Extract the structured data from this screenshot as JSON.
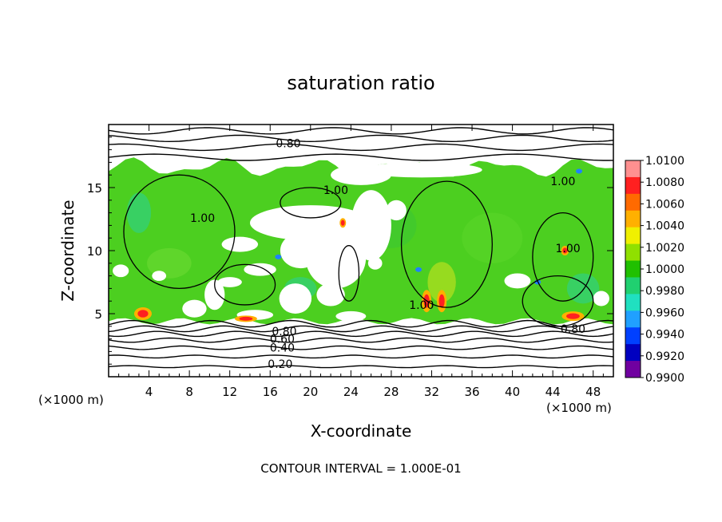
{
  "chart_data": {
    "type": "heatmap",
    "title": "saturation ratio",
    "xlabel": "X-coordinate",
    "ylabel": "Z-coordinate",
    "x_unit": "(×1000 m)",
    "y_unit": "(×1000 m)",
    "footer": "CONTOUR INTERVAL = 1.000E-01",
    "xlim": [
      0,
      50
    ],
    "ylim": [
      0,
      20
    ],
    "x_ticks": [
      4,
      8,
      12,
      16,
      20,
      24,
      28,
      32,
      36,
      40,
      44,
      48
    ],
    "y_ticks": [
      5,
      10,
      15
    ],
    "colorbar": {
      "ticks": [
        "1.0100",
        "1.0080",
        "1.0060",
        "1.0040",
        "1.0020",
        "1.0000",
        "0.9980",
        "0.9960",
        "0.9940",
        "0.9920",
        "0.9900"
      ],
      "colors": [
        "#ff9090",
        "#ff2020",
        "#ff6a00",
        "#ffb000",
        "#f0f000",
        "#90e000",
        "#20c000",
        "#20d070",
        "#20e0c0",
        "#20a0ff",
        "#0040ff",
        "#0000c0",
        "#7000a0"
      ]
    },
    "contour_labels": [
      {
        "text": "0.20",
        "x": 17,
        "z": 1.0
      },
      {
        "text": "0.40",
        "x": 17.2,
        "z": 2.3
      },
      {
        "text": "0.60",
        "x": 17.2,
        "z": 3.0
      },
      {
        "text": "0.80",
        "x": 17.4,
        "z": 3.6
      },
      {
        "text": "0.80",
        "x": 46,
        "z": 3.8
      },
      {
        "text": "0.80",
        "x": 17.8,
        "z": 18.5
      },
      {
        "text": "1.00",
        "x": 31,
        "z": 5.7
      },
      {
        "text": "1.00",
        "x": 45,
        "z": 15.5
      },
      {
        "text": "1.00",
        "x": 9.3,
        "z": 12.6
      },
      {
        "text": "1.00",
        "x": 22.5,
        "z": 14.8
      },
      {
        "text": "1.00",
        "x": 45.5,
        "z": 10.2
      }
    ],
    "upper_isolines_z": [
      17.4,
      18.2,
      18.9,
      19.5
    ],
    "lower_isolines_z": [
      0.8,
      1.6,
      2.3,
      2.9,
      3.4,
      3.8,
      4.2
    ],
    "field": {
      "cloud_top_z": 16.6,
      "cloud_base_z": 4.4,
      "base_value": 1.0,
      "notes": "Green field (~1.0000) filling the cloud layer with white (sub-saturated) gaps; warm spots at the base near x=4, 14, 32, 46."
    }
  }
}
